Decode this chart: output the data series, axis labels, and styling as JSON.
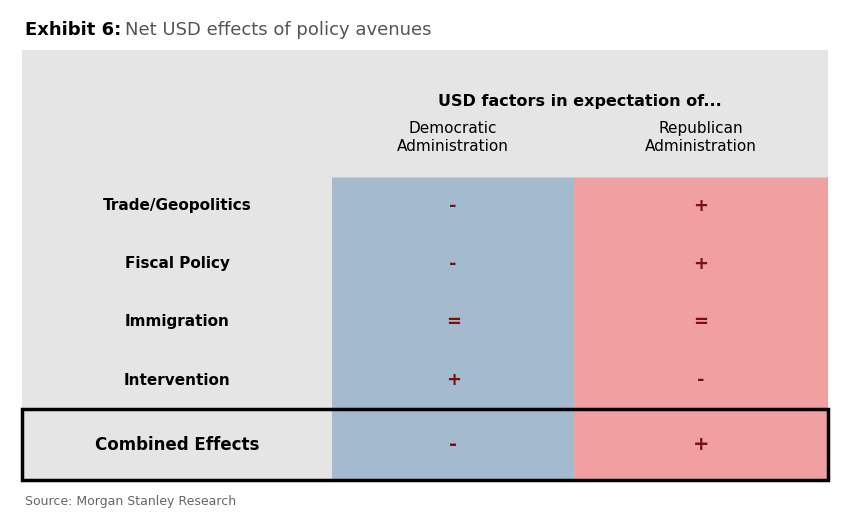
{
  "title_bold": "Exhibit 6:",
  "title_normal": "Net USD effects of policy avenues",
  "header_main": "USD factors in expectation of...",
  "col1_header_line1": "Democratic",
  "col1_header_line2": "Administration",
  "col2_header_line1": "Republican",
  "col2_header_line2": "Administration",
  "rows": [
    {
      "label": "Trade/Geopolitics",
      "dem": "-",
      "rep": "+"
    },
    {
      "label": "Fiscal Policy",
      "dem": "-",
      "rep": "+"
    },
    {
      "label": "Immigration",
      "dem": "=",
      "rep": "="
    },
    {
      "label": "Intervention",
      "dem": "+",
      "rep": "-"
    }
  ],
  "footer_label": "Combined Effects",
  "footer_dem": "-",
  "footer_rep": "+",
  "source": "Source: Morgan Stanley Research",
  "bg_color": "#e5e5e5",
  "dem_color": "#a4bbcf",
  "rep_color": "#f0a0a0",
  "symbol_color": "#7a1010",
  "text_color": "#000000",
  "title_color": "#555555",
  "fig_bg": "#ffffff",
  "fig_width": 8.48,
  "fig_height": 5.2,
  "dpi": 100
}
